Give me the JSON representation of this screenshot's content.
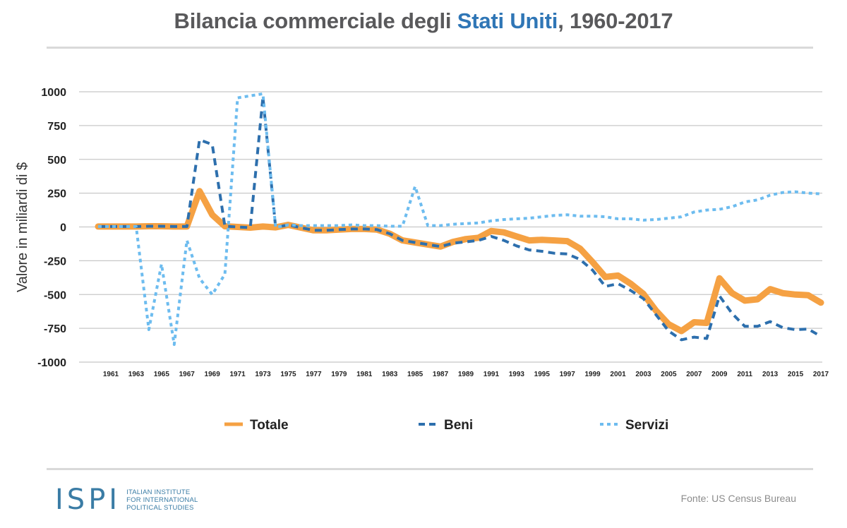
{
  "header": {
    "title_prefix": "Bilancia commerciale degli ",
    "title_highlight": "Stati Uniti",
    "title_suffix": ", 1960-2017"
  },
  "colors": {
    "title": "#59595b",
    "highlight": "#2f76b6",
    "totale": "#f5a143",
    "beni": "#2d6fad",
    "servizi": "#6dbcef",
    "grid": "#c8c8c8"
  },
  "footer": {
    "logo_mark": "ISPI",
    "logo_lines": [
      "ITALIAN INSTITUTE",
      "FOR INTERNATIONAL",
      "POLITICAL STUDIES"
    ],
    "source": "Fonte: US Census Bureau"
  },
  "chart_data": {
    "type": "line",
    "title": "Bilancia commerciale degli Stati Uniti, 1960-2017",
    "xlabel": "",
    "ylabel": "Valore in miliardi di $",
    "ylim": [
      -1000,
      1000
    ],
    "yticks": [
      1000,
      750,
      500,
      250,
      0,
      -250,
      -500,
      -750,
      -1000
    ],
    "xticks": [
      "1961",
      "1963",
      "1965",
      "1967",
      "1969",
      "1971",
      "1973",
      "1975",
      "1977",
      "1979",
      "1981",
      "1983",
      "1985",
      "1987",
      "1989",
      "1991",
      "1993",
      "1995",
      "1997",
      "1999",
      "2001",
      "2003",
      "2005",
      "2007",
      "2009",
      "2011",
      "2013",
      "2015",
      "2017"
    ],
    "grid": true,
    "legend_position": "bottom",
    "x": [
      1960,
      1961,
      1962,
      1963,
      1964,
      1965,
      1966,
      1967,
      1968,
      1969,
      1970,
      1971,
      1972,
      1973,
      1974,
      1975,
      1976,
      1977,
      1978,
      1979,
      1980,
      1981,
      1982,
      1983,
      1984,
      1985,
      1986,
      1987,
      1988,
      1989,
      1990,
      1991,
      1992,
      1993,
      1994,
      1995,
      1996,
      1997,
      1998,
      1999,
      2000,
      2001,
      2002,
      2003,
      2004,
      2005,
      2006,
      2007,
      2008,
      2009,
      2010,
      2011,
      2012,
      2013,
      2014,
      2015,
      2016,
      2017
    ],
    "series": [
      {
        "name": "Totale",
        "style": "solid",
        "values": [
          3,
          3,
          3,
          3,
          5,
          5,
          3,
          3,
          265,
          90,
          5,
          0,
          -5,
          3,
          -3,
          15,
          -5,
          -25,
          -25,
          -20,
          -15,
          -15,
          -20,
          -50,
          -100,
          -115,
          -130,
          -145,
          -110,
          -90,
          -80,
          -30,
          -40,
          -70,
          -100,
          -95,
          -100,
          -105,
          -160,
          -260,
          -370,
          -360,
          -420,
          -495,
          -620,
          -720,
          -770,
          -705,
          -710,
          -380,
          -490,
          -545,
          -535,
          -460,
          -490,
          -500,
          -505,
          -560
        ]
      },
      {
        "name": "Beni",
        "style": "dashed",
        "values": [
          3,
          3,
          3,
          3,
          5,
          5,
          3,
          3,
          645,
          610,
          5,
          0,
          -5,
          960,
          -3,
          15,
          -5,
          -25,
          -25,
          -20,
          -15,
          -15,
          -20,
          -50,
          -100,
          -115,
          -130,
          -145,
          -120,
          -110,
          -100,
          -70,
          -100,
          -140,
          -170,
          -180,
          -195,
          -200,
          -240,
          -320,
          -440,
          -420,
          -470,
          -530,
          -650,
          -770,
          -835,
          -815,
          -825,
          -510,
          -640,
          -735,
          -735,
          -700,
          -745,
          -760,
          -755,
          -810
        ]
      },
      {
        "name": "Servizi",
        "style": "dotted",
        "values": [
          3,
          3,
          3,
          3,
          -760,
          -275,
          -870,
          -100,
          -380,
          -500,
          -350,
          955,
          970,
          985,
          -3,
          15,
          10,
          10,
          10,
          10,
          15,
          10,
          10,
          5,
          5,
          300,
          10,
          10,
          20,
          25,
          30,
          45,
          55,
          60,
          65,
          75,
          85,
          90,
          80,
          80,
          75,
          60,
          60,
          50,
          55,
          65,
          75,
          110,
          125,
          130,
          150,
          185,
          200,
          235,
          255,
          260,
          250,
          245
        ]
      }
    ]
  }
}
